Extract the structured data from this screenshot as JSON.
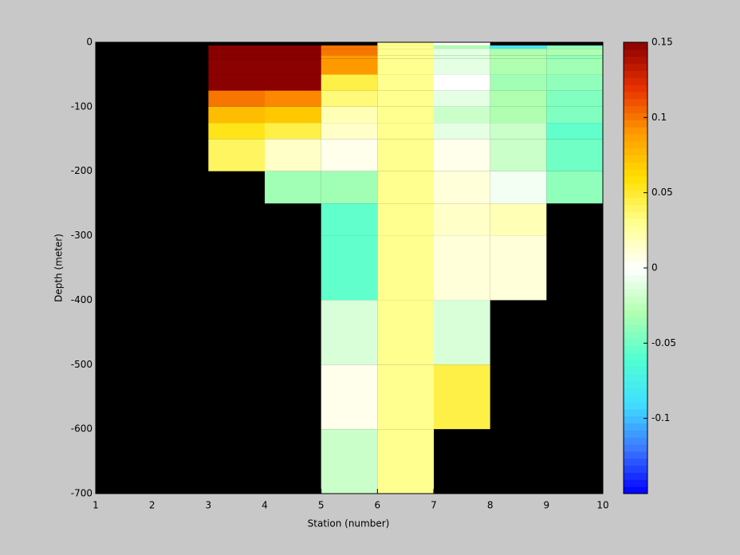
{
  "chart_data": {
    "type": "heatmap",
    "xlabel": "Station (number)",
    "ylabel": "Depth (meter)",
    "x_edges": [
      1,
      2,
      3,
      4,
      5,
      6,
      7,
      8,
      9,
      10
    ],
    "y_edges": [
      0,
      -5,
      -10,
      -20,
      -25,
      -50,
      -75,
      -100,
      -125,
      -150,
      -200,
      -250,
      -300,
      -400,
      -500,
      -600,
      -700
    ],
    "values": [
      [
        null,
        null,
        null,
        null,
        null,
        0.03,
        0.0,
        null,
        null
      ],
      [
        null,
        null,
        0.15,
        0.15,
        0.1,
        0.03,
        -0.03,
        -0.08,
        -0.04
      ],
      [
        null,
        null,
        0.15,
        0.15,
        0.1,
        0.03,
        -0.01,
        -0.03,
        -0.03
      ],
      [
        null,
        null,
        0.15,
        0.15,
        0.09,
        0.03,
        -0.015,
        -0.03,
        -0.04
      ],
      [
        null,
        null,
        0.15,
        0.15,
        0.09,
        0.03,
        -0.01,
        -0.03,
        -0.035
      ],
      [
        null,
        null,
        0.15,
        0.15,
        0.045,
        0.03,
        0.0,
        -0.035,
        -0.04
      ],
      [
        null,
        null,
        0.1,
        0.095,
        0.035,
        0.03,
        -0.01,
        -0.03,
        -0.045
      ],
      [
        null,
        null,
        0.075,
        0.07,
        0.02,
        0.03,
        -0.02,
        -0.03,
        -0.045
      ],
      [
        null,
        null,
        0.055,
        0.045,
        0.015,
        0.03,
        -0.01,
        -0.02,
        -0.055
      ],
      [
        null,
        null,
        0.04,
        0.015,
        0.005,
        0.03,
        0.005,
        -0.02,
        -0.05
      ],
      [
        null,
        null,
        null,
        -0.035,
        -0.035,
        0.03,
        0.01,
        -0.005,
        -0.04
      ],
      [
        null,
        null,
        null,
        null,
        -0.055,
        0.03,
        0.015,
        0.02,
        null
      ],
      [
        null,
        null,
        null,
        null,
        -0.055,
        0.03,
        0.01,
        0.01,
        null
      ],
      [
        null,
        null,
        null,
        null,
        -0.015,
        0.03,
        -0.015,
        null,
        null
      ],
      [
        null,
        null,
        null,
        null,
        0.005,
        0.03,
        0.045,
        null,
        null
      ],
      [
        null,
        null,
        null,
        null,
        -0.02,
        0.03,
        null,
        null,
        null
      ]
    ],
    "xlim": [
      1,
      10
    ],
    "ylim": [
      -700,
      0
    ],
    "xticks": [
      1,
      2,
      3,
      4,
      5,
      6,
      7,
      8,
      9,
      10
    ],
    "yticks": [
      0,
      -100,
      -200,
      -300,
      -400,
      -500,
      -600,
      -700
    ],
    "background": "#000000",
    "clim": [
      -0.15,
      0.15
    ],
    "cticks": [
      0.15,
      0.1,
      0.05,
      0,
      -0.05,
      -0.1
    ],
    "colormap": [
      "#0000ff",
      "#3c78ff",
      "#40e0ff",
      "#50ffd0",
      "#b0ffb0",
      "#ffffff",
      "#ffff90",
      "#ffe000",
      "#ff9900",
      "#e83000",
      "#8b0000"
    ]
  }
}
